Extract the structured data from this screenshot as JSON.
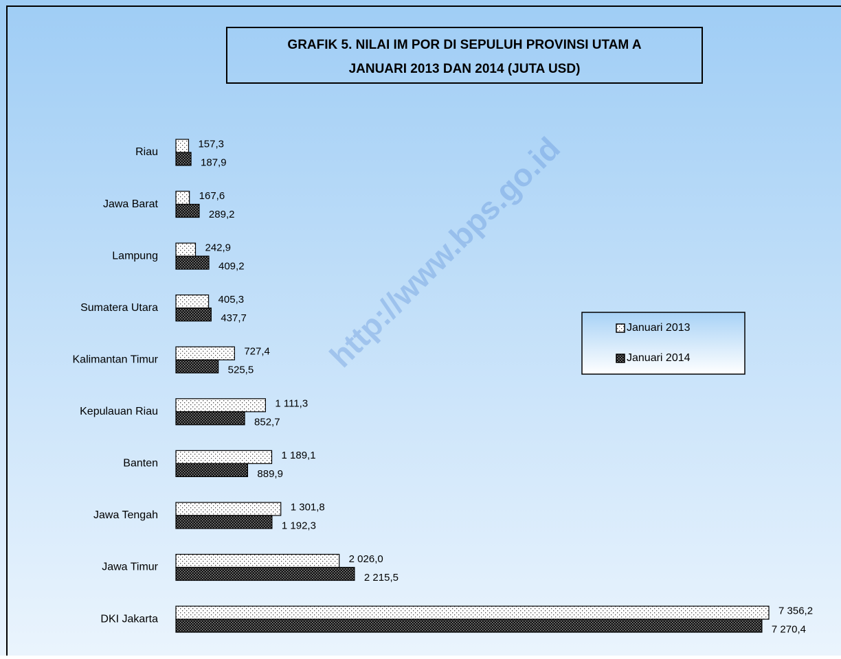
{
  "chart_data": {
    "type": "barh",
    "title_lines": [
      "GRAFIK 5. NILAI IM POR DI SEPULUH PROVINSI UTAM A",
      "JANUARI 2013 DAN 2014 (JUTA USD)"
    ],
    "watermark": "http://www.bps.go.id",
    "categories": [
      "Riau",
      "Jawa Barat",
      "Lampung",
      "Sumatera Utara",
      "Kalimantan Timur",
      "Kepulauan Riau",
      "Banten",
      "Jawa Tengah",
      "Jawa Timur",
      "DKI Jakarta"
    ],
    "series": [
      {
        "name": "Januari 2013",
        "color": "#ffffff",
        "values": [
          157.3,
          167.6,
          242.9,
          405.3,
          727.4,
          1111.3,
          1189.1,
          1301.8,
          2026.0,
          7356.2
        ],
        "value_labels": [
          "157,3",
          "167,6",
          "242,9",
          "405,3",
          "727,4",
          "1 111,3",
          "1 189,1",
          "1 301,8",
          "2 026,0",
          "7 356,2"
        ]
      },
      {
        "name": "Januari 2014",
        "color": "#222222",
        "values": [
          187.9,
          289.2,
          409.2,
          437.7,
          525.5,
          852.7,
          889.9,
          1192.3,
          2215.5,
          7270.4
        ],
        "value_labels": [
          "187,9",
          "289,2",
          "409,2",
          "437,7",
          "525,5",
          "852,7",
          "889,9",
          "1 192,3",
          "2 215,5",
          "7 270,4"
        ]
      }
    ],
    "legend": "right"
  }
}
